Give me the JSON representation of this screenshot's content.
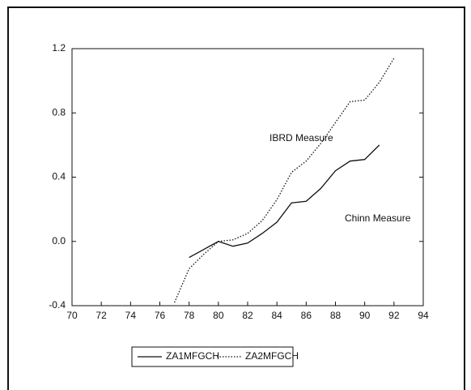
{
  "chart_data": {
    "type": "line",
    "x": [
      77,
      78,
      79,
      80,
      81,
      82,
      83,
      84,
      85,
      86,
      87,
      88,
      89,
      90,
      91,
      92
    ],
    "series": [
      {
        "name": "ZA1MFGCH",
        "color": "#111111",
        "dash": "solid",
        "values": [
          null,
          -0.1,
          -0.05,
          0.0,
          -0.03,
          -0.01,
          0.05,
          0.12,
          0.24,
          0.25,
          0.33,
          0.44,
          0.5,
          0.51,
          0.6,
          null
        ]
      },
      {
        "name": "ZA2MFGCH",
        "color": "#111111",
        "dash": "dotted",
        "values": [
          -0.38,
          -0.17,
          -0.08,
          0.0,
          0.01,
          0.05,
          0.13,
          0.26,
          0.43,
          0.5,
          0.61,
          0.74,
          0.87,
          0.88,
          0.99,
          1.14
        ]
      }
    ],
    "annotations": [
      "IBRD Measure",
      "Chinn Measure"
    ],
    "xlim": [
      70,
      94
    ],
    "xticks": [
      70,
      72,
      74,
      76,
      78,
      80,
      82,
      84,
      86,
      88,
      90,
      92,
      94
    ],
    "ylim": [
      -0.4,
      1.2
    ],
    "yticks": [
      -0.4,
      {
        "value": 0,
        "label": "0.0"
      },
      0.4,
      0.8,
      1.2
    ],
    "grid": false,
    "legend": "bottom"
  }
}
